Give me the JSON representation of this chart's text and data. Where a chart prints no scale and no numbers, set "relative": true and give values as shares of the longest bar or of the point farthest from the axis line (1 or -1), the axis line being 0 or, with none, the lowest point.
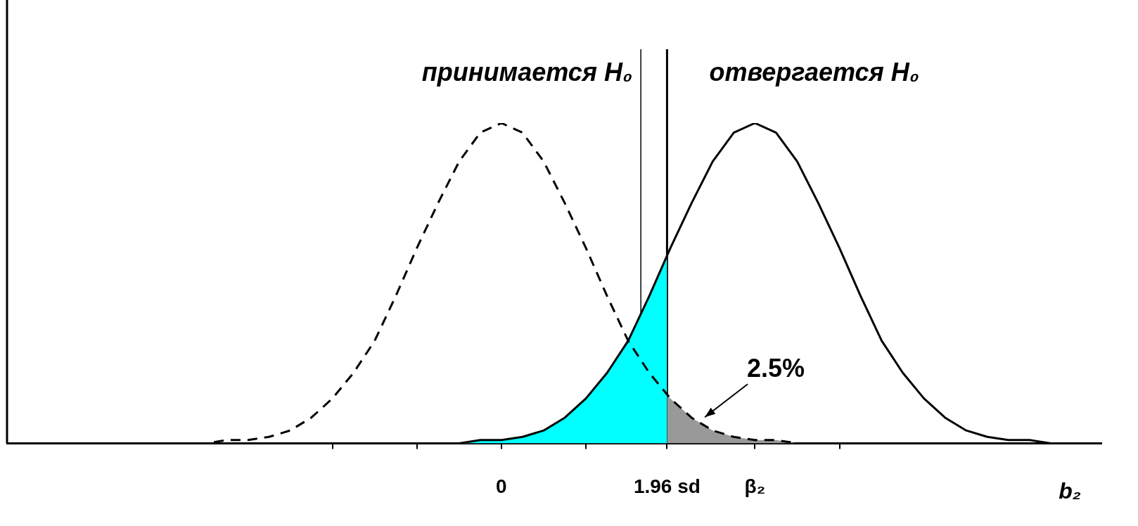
{
  "chart_data": {
    "type": "line",
    "relative": true,
    "xlabel": "b₂",
    "xlim": [
      -5.85,
      7.1
    ],
    "xticks": [
      {
        "value": -2,
        "label": null
      },
      {
        "value": -1,
        "label": null
      },
      0,
      {
        "value": 1,
        "label": null
      },
      {
        "value": 1.96,
        "label": "1.96 sd"
      },
      {
        "value": 3,
        "label": "β₂"
      },
      {
        "value": 4,
        "label": null
      }
    ],
    "grid": false,
    "legend": false,
    "marker": "none",
    "series": [
      {
        "type": "area",
        "color": "#00ffff",
        "x": [
          -1,
          -0.75,
          -0.5,
          -0.25,
          0,
          0.25,
          0.5,
          0.75,
          1,
          1.25,
          1.5,
          1.75,
          1.96
        ],
        "values": [
          0,
          0,
          0,
          0.01,
          0.01,
          0.02,
          0.04,
          0.08,
          0.14,
          0.22,
          0.32,
          0.46,
          0.58
        ]
      },
      {
        "type": "area",
        "color": "#999999",
        "x": [
          1.96,
          2,
          2.25,
          2.5,
          2.75,
          3,
          3.25,
          3.5,
          3.75,
          4
        ],
        "values": [
          0.15,
          0.14,
          0.08,
          0.04,
          0.02,
          0.01,
          0.01,
          0,
          0,
          0
        ]
      },
      {
        "color": "#000000",
        "line_style": "dashed",
        "x": [
          -4,
          -3.75,
          -3.5,
          -3.25,
          -3,
          -2.75,
          -2.5,
          -2.25,
          -2,
          -1.75,
          -1.5,
          -1.25,
          -1,
          -0.75,
          -0.5,
          -0.25,
          0,
          0.25,
          0.5,
          0.75,
          1,
          1.25,
          1.5,
          1.75,
          2,
          2.25,
          2.5,
          2.75,
          3,
          3.25,
          3.5,
          3.75,
          4
        ],
        "values": [
          0,
          0,
          0,
          0.01,
          0.01,
          0.02,
          0.04,
          0.08,
          0.14,
          0.22,
          0.32,
          0.46,
          0.61,
          0.75,
          0.88,
          0.97,
          1,
          0.97,
          0.88,
          0.75,
          0.61,
          0.46,
          0.32,
          0.22,
          0.14,
          0.08,
          0.04,
          0.02,
          0.01,
          0.01,
          0,
          0,
          0
        ]
      },
      {
        "color": "#000000",
        "line_style": "solid",
        "x": [
          -1,
          -0.75,
          -0.5,
          -0.25,
          0,
          0.25,
          0.5,
          0.75,
          1,
          1.25,
          1.5,
          1.75,
          2,
          2.25,
          2.5,
          2.75,
          3,
          3.25,
          3.5,
          3.75,
          4,
          4.25,
          4.5,
          4.75,
          5,
          5.25,
          5.5,
          5.75,
          6,
          6.25,
          6.5,
          6.75,
          7
        ],
        "values": [
          0,
          0,
          0,
          0.01,
          0.01,
          0.02,
          0.04,
          0.08,
          0.14,
          0.22,
          0.32,
          0.46,
          0.61,
          0.75,
          0.88,
          0.97,
          1,
          0.97,
          0.88,
          0.75,
          0.61,
          0.46,
          0.32,
          0.22,
          0.14,
          0.08,
          0.04,
          0.02,
          0.01,
          0.01,
          0,
          0,
          0
        ]
      }
    ],
    "ref_lines": [
      {
        "axis": "x",
        "value": 1.65,
        "label": "принимается H₀"
      },
      {
        "axis": "x",
        "value": 1.96,
        "label": "отвергается H₀"
      }
    ],
    "annotations": [
      "2.5%"
    ]
  }
}
